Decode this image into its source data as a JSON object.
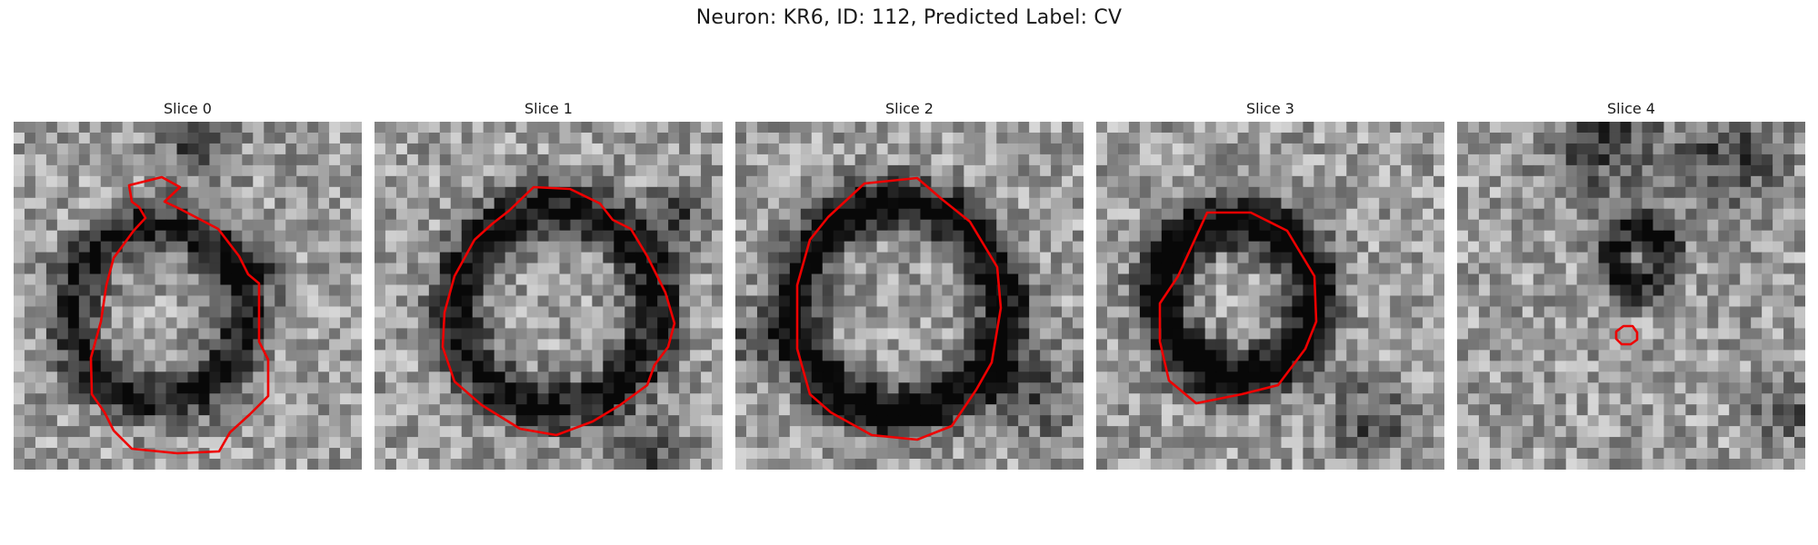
{
  "figure": {
    "title": "Neuron: KR6, ID: 112, Predicted Label: CV"
  },
  "colors": {
    "contour": "#ee0000",
    "colormap": "grayscale"
  },
  "slices": [
    {
      "title": "Slice 0",
      "seed": 11,
      "ring_darkness": 0.55
    },
    {
      "title": "Slice 1",
      "seed": 23,
      "ring_darkness": 0.6
    },
    {
      "title": "Slice 2",
      "seed": 37,
      "ring_darkness": 0.7
    },
    {
      "title": "Slice 3",
      "seed": 41,
      "ring_darkness": 0.75
    },
    {
      "title": "Slice 4",
      "seed": 59,
      "ring_darkness": 0.5
    }
  ]
}
